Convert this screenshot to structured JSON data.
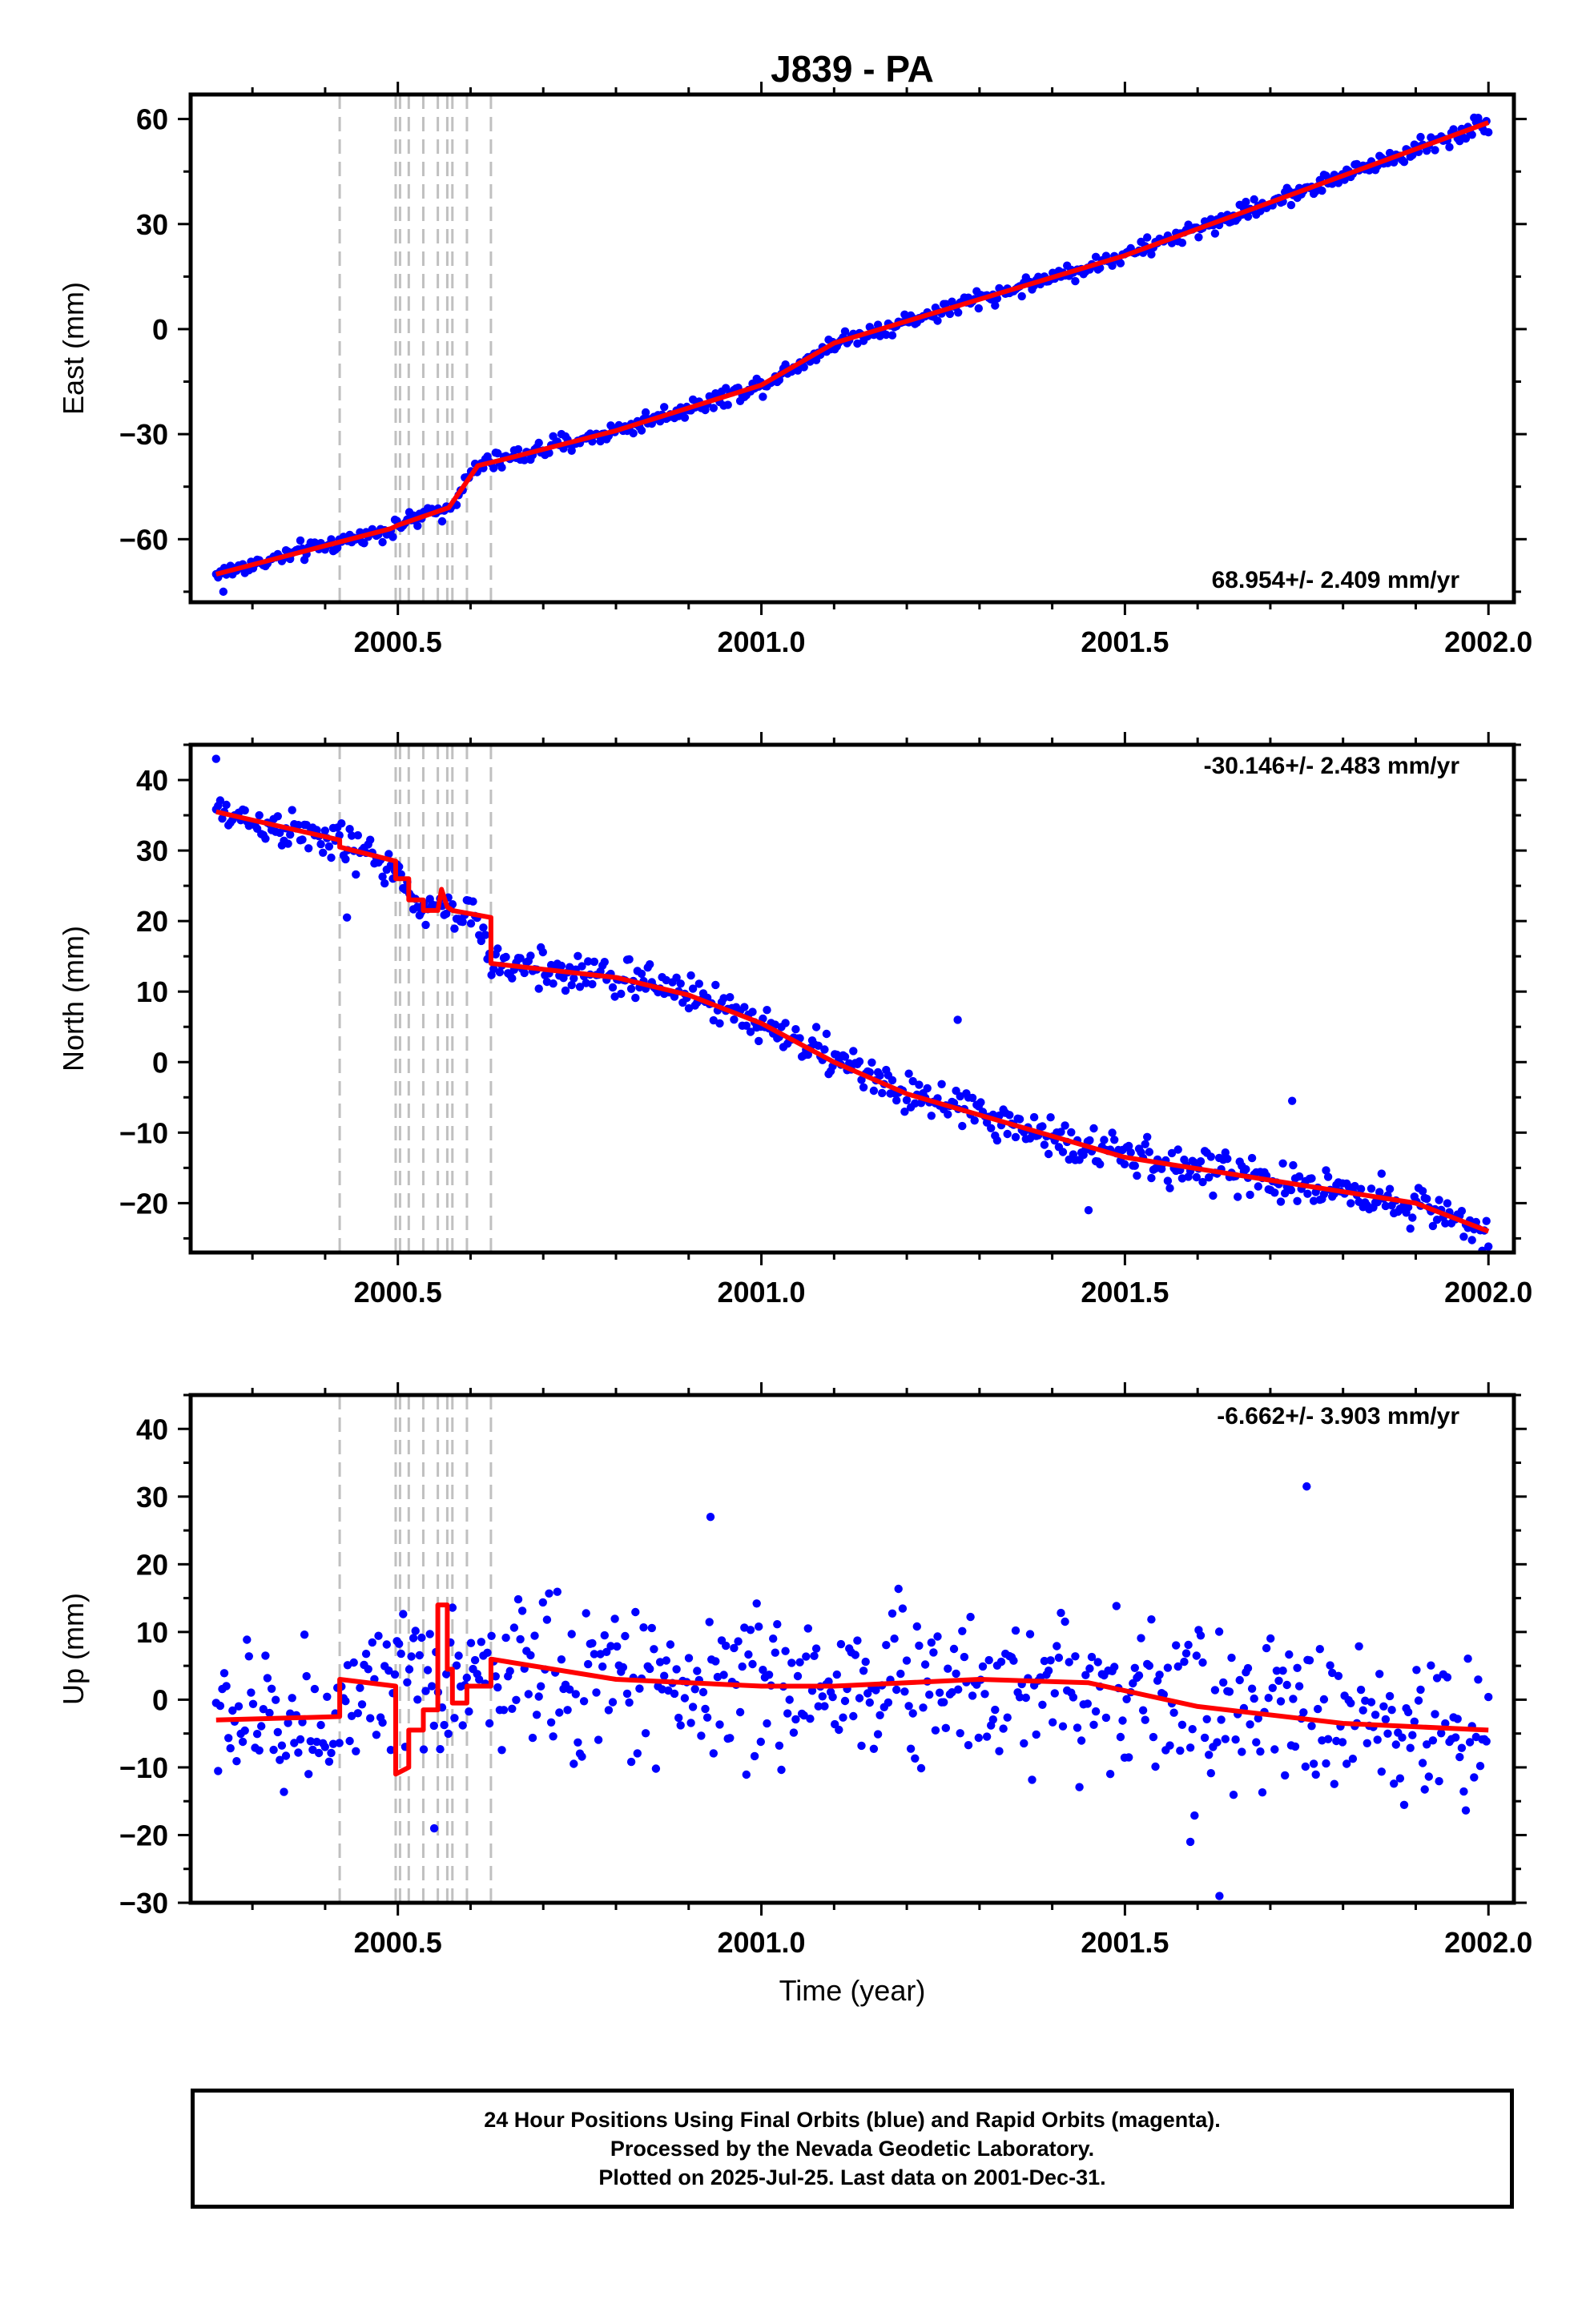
{
  "title": "J839 - PA",
  "xlabel": "Time (year)",
  "colors": {
    "points": "#0000ff",
    "model": "#ff0000",
    "events": "#c0c0c0",
    "frame": "#000000"
  },
  "caption": {
    "line1": "24 Hour Positions Using Final Orbits (blue) and Rapid Orbits (magenta).",
    "line2": "Processed by the Nevada Geodetic Laboratory.",
    "line3": "Plotted on 2025-Jul-25. Last data on 2001-Dec-31."
  },
  "chart_data": [
    {
      "type": "scatter",
      "ylabel": "East (mm)",
      "xlim": [
        2000.215,
        2002.035
      ],
      "ylim": [
        -78,
        67
      ],
      "xticks": [
        2000.5,
        2001.0,
        2001.5,
        2002.0
      ],
      "xtick_labels": [
        "2000.5",
        "2001.0",
        "2001.5",
        "2002.0"
      ],
      "yticks": [
        -60,
        -30,
        0,
        30,
        60
      ],
      "ytick_labels": [
        "−60",
        "−30",
        "0",
        "30",
        "60"
      ],
      "rate_label": "68.954+/- 2.409 mm/yr",
      "rate_position": "bottom-right",
      "event_lines": [
        2000.42,
        2000.497,
        2000.503,
        2000.515,
        2000.535,
        2000.555,
        2000.568,
        2000.575,
        2000.595,
        2000.628
      ],
      "series": [
        {
          "style": "points",
          "x_range": [
            2000.25,
            2002.0
          ],
          "approx_points": 620,
          "noise_sd_mm": 1.8,
          "trend": {
            "x": [
              2000.25,
              2000.49,
              2000.5,
              2000.57,
              2000.61,
              2000.65,
              2000.8,
              2001.0,
              2001.1,
              2001.5,
              2002.0
            ],
            "y": [
              -70,
              -57,
              -56,
              -51,
              -39,
              -37,
              -29,
              -16,
              -4,
              21,
              59
            ]
          },
          "outliers": [
            {
              "x": 2000.26,
              "y": -75
            }
          ]
        },
        {
          "style": "line",
          "x": [
            2000.25,
            2000.49,
            2000.5,
            2000.57,
            2000.61,
            2000.65,
            2000.8,
            2001.0,
            2001.1,
            2001.5,
            2002.0
          ],
          "y": [
            -70,
            -57,
            -56,
            -51,
            -39,
            -37,
            -29,
            -16,
            -4,
            21,
            59
          ]
        }
      ]
    },
    {
      "type": "scatter",
      "ylabel": "North (mm)",
      "xlim": [
        2000.215,
        2002.035
      ],
      "ylim": [
        -27,
        45
      ],
      "xticks": [
        2000.5,
        2001.0,
        2001.5,
        2002.0
      ],
      "xtick_labels": [
        "2000.5",
        "2001.0",
        "2001.5",
        "2002.0"
      ],
      "yticks": [
        -20,
        -10,
        0,
        10,
        20,
        30,
        40
      ],
      "ytick_labels": [
        "−20",
        "−10",
        "0",
        "10",
        "20",
        "30",
        "40"
      ],
      "rate_label": "-30.146+/- 2.483 mm/yr",
      "rate_position": "top-right",
      "event_lines": [
        2000.42,
        2000.497,
        2000.503,
        2000.515,
        2000.535,
        2000.555,
        2000.568,
        2000.575,
        2000.595,
        2000.628
      ],
      "series": [
        {
          "style": "points",
          "x_range": [
            2000.25,
            2002.0
          ],
          "approx_points": 620,
          "noise_sd_mm": 2.0,
          "trend": {
            "x": [
              2000.25,
              2000.42,
              2000.49,
              2000.5,
              2000.52,
              2000.54,
              2000.56,
              2000.6,
              2000.63,
              2000.8,
              2000.9,
              2001.0,
              2001.2,
              2001.5,
              2001.9,
              2002.0
            ],
            "y": [
              35.5,
              31,
              28,
              26,
              22.5,
              21.5,
              22,
              21,
              14,
              12,
              10,
              5.5,
              -4.5,
              -13.5,
              -20,
              -24
            ]
          },
          "outliers": [
            {
              "x": 2000.25,
              "y": 43
            },
            {
              "x": 2001.27,
              "y": 6
            },
            {
              "x": 2001.73,
              "y": -5.5
            },
            {
              "x": 2000.43,
              "y": 20.5
            },
            {
              "x": 2001.45,
              "y": -21
            }
          ]
        },
        {
          "style": "line",
          "x": [
            2000.25,
            2000.42,
            2000.42,
            2000.497,
            2000.497,
            2000.515,
            2000.515,
            2000.535,
            2000.535,
            2000.555,
            2000.56,
            2000.568,
            2000.575,
            2000.628,
            2000.628,
            2000.8,
            2000.9,
            2001.0,
            2001.1,
            2001.2,
            2001.5,
            2001.9,
            2002.0
          ],
          "y": [
            35.5,
            31.5,
            30.5,
            28.5,
            26,
            26,
            23,
            23,
            21.5,
            21.5,
            24.5,
            22,
            21.5,
            20.5,
            14,
            12,
            9.5,
            5.5,
            0,
            -4.5,
            -13.5,
            -20,
            -24
          ]
        }
      ]
    },
    {
      "type": "scatter",
      "ylabel": "Up (mm)",
      "xlim": [
        2000.215,
        2002.035
      ],
      "ylim": [
        -30,
        45
      ],
      "xticks": [
        2000.5,
        2001.0,
        2001.5,
        2002.0
      ],
      "xtick_labels": [
        "2000.5",
        "2001.0",
        "2001.5",
        "2002.0"
      ],
      "yticks": [
        -30,
        -20,
        -10,
        0,
        10,
        20,
        30,
        40
      ],
      "ytick_labels": [
        "−30",
        "−20",
        "−10",
        "0",
        "10",
        "20",
        "30",
        "40"
      ],
      "rate_label": "-6.662+/- 3.903 mm/yr",
      "rate_position": "top-right",
      "event_lines": [
        2000.42,
        2000.497,
        2000.503,
        2000.515,
        2000.535,
        2000.555,
        2000.568,
        2000.575,
        2000.595,
        2000.628
      ],
      "series": [
        {
          "style": "points",
          "x_range": [
            2000.25,
            2002.0
          ],
          "approx_points": 620,
          "noise_sd_mm": 8.0,
          "trend": {
            "x": [
              2000.25,
              2000.42,
              2000.6,
              2000.8,
              2001.0,
              2001.3,
              2001.45,
              2001.6,
              2001.8,
              2002.0
            ],
            "y": [
              -3,
              -2.5,
              4,
              3,
              2,
              3,
              2.5,
              -1,
              -3.5,
              -4.5
            ]
          },
          "outliers": [
            {
              "x": 2001.75,
              "y": 31.5
            },
            {
              "x": 2001.63,
              "y": -29
            },
            {
              "x": 2001.59,
              "y": -21
            },
            {
              "x": 2000.93,
              "y": 27
            },
            {
              "x": 2000.55,
              "y": -19
            }
          ]
        },
        {
          "style": "line",
          "x": [
            2000.25,
            2000.42,
            2000.42,
            2000.497,
            2000.497,
            2000.515,
            2000.515,
            2000.535,
            2000.535,
            2000.555,
            2000.555,
            2000.568,
            2000.568,
            2000.575,
            2000.575,
            2000.595,
            2000.595,
            2000.628,
            2000.628,
            2000.8,
            2001.0,
            2001.1,
            2001.3,
            2001.45,
            2001.6,
            2001.8,
            2002.0
          ],
          "y": [
            -3,
            -2.5,
            3,
            2,
            -11,
            -10,
            -4.5,
            -4.5,
            -1.5,
            -1.5,
            14,
            14,
            4.5,
            4.5,
            -0.5,
            -0.5,
            2,
            2,
            6,
            3,
            2,
            2,
            3,
            2.5,
            -1,
            -3.5,
            -4.5
          ]
        }
      ]
    }
  ]
}
